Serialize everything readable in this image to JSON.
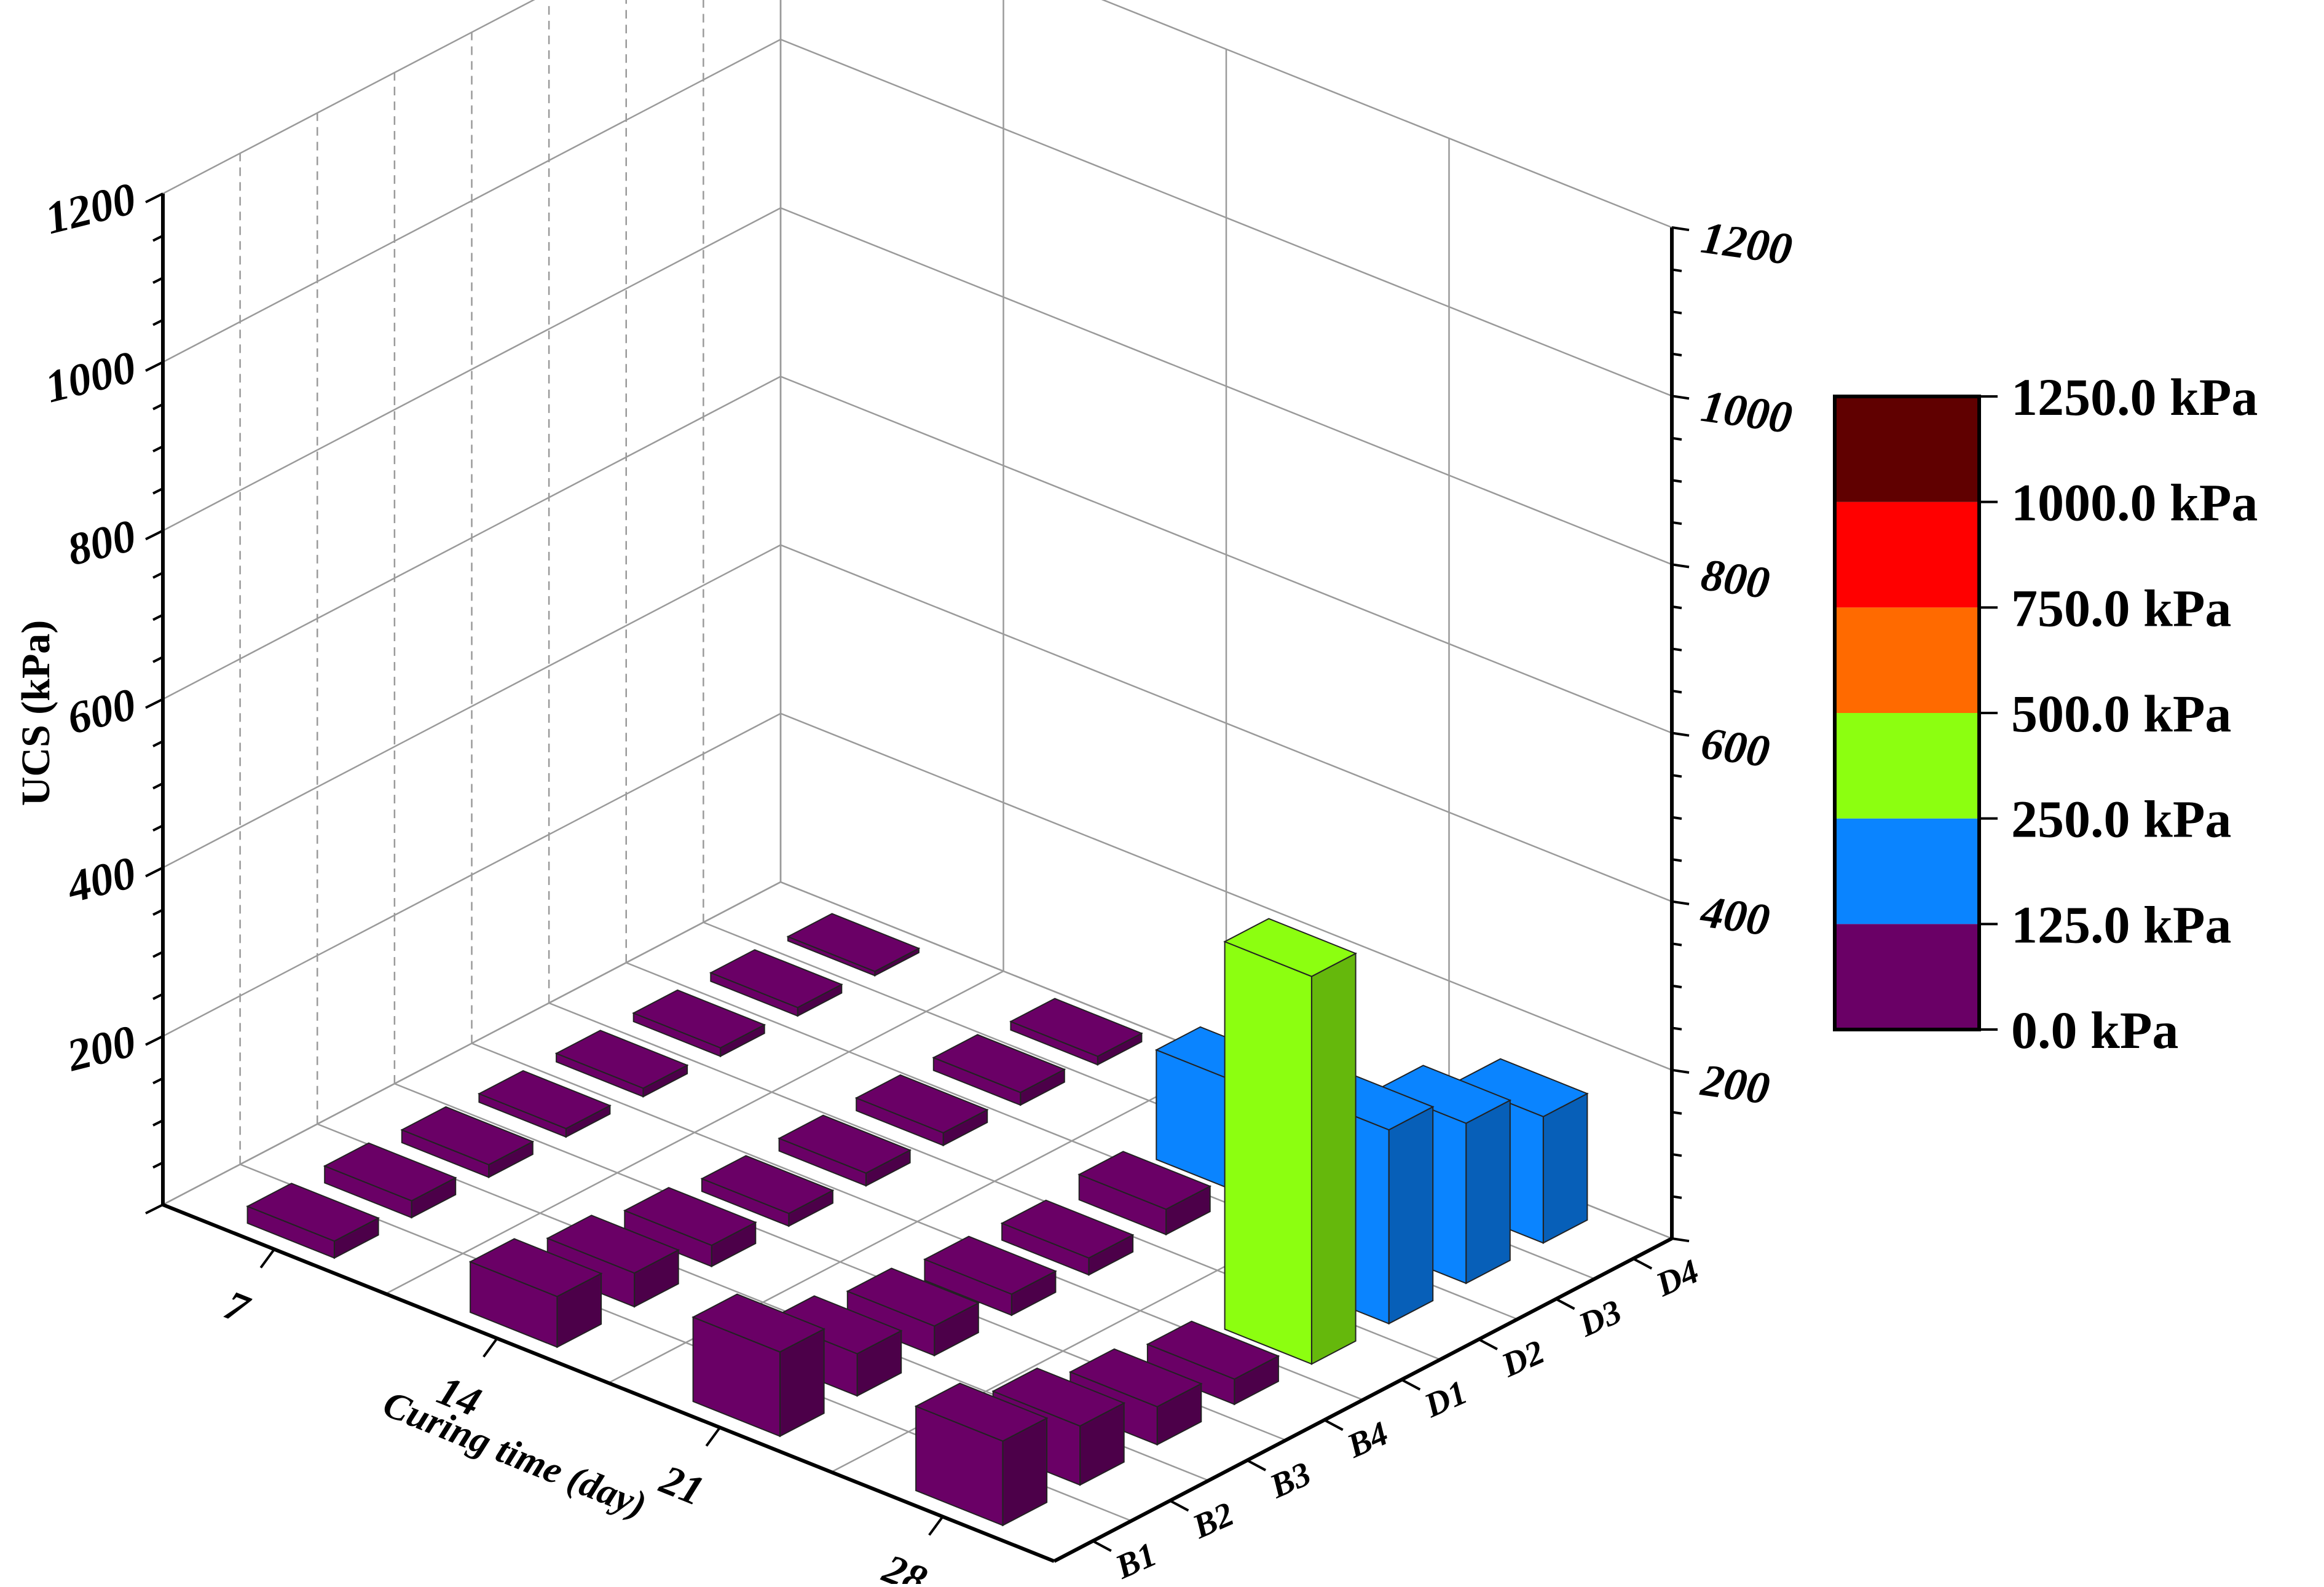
{
  "chart_data": {
    "type": "bar3d",
    "zlabel": "UCS (kPa)",
    "xlabel": "Curing time (day)",
    "x_categories": [
      "7",
      "14",
      "21",
      "28"
    ],
    "y_categories": [
      "B1",
      "B2",
      "B3",
      "B4",
      "D1",
      "D2",
      "D3",
      "D4"
    ],
    "z_ticks": [
      "200",
      "400",
      "600",
      "800",
      "1000",
      "1200"
    ],
    "zlim": [
      0,
      1200
    ],
    "grid": true,
    "colormap": {
      "levels": [
        "0.0 kPa",
        "125.0 kPa",
        "250.0 kPa",
        "500.0 kPa",
        "750.0 kPa",
        "1000.0 kPa",
        "1250.0 kPa"
      ],
      "bounds": [
        0,
        125,
        250,
        500,
        750,
        1000,
        1250
      ],
      "colors": [
        "#6a0066",
        "#0a84ff",
        "#8cff10",
        "#ff6a00",
        "#ff0000",
        "#600000"
      ]
    },
    "series": [
      {
        "name": "B1",
        "values": [
          20,
          60,
          100,
          100
        ]
      },
      {
        "name": "B2",
        "values": [
          20,
          40,
          50,
          70
        ]
      },
      {
        "name": "B3",
        "values": [
          15,
          25,
          35,
          45
        ]
      },
      {
        "name": "B4",
        "values": [
          10,
          15,
          25,
          30
        ]
      },
      {
        "name": "D1",
        "values": [
          10,
          15,
          20,
          460
        ]
      },
      {
        "name": "D2",
        "values": [
          10,
          15,
          30,
          230
        ]
      },
      {
        "name": "D3",
        "values": [
          10,
          15,
          130,
          190
        ]
      },
      {
        "name": "D4",
        "values": [
          5,
          10,
          15,
          150
        ]
      }
    ]
  }
}
